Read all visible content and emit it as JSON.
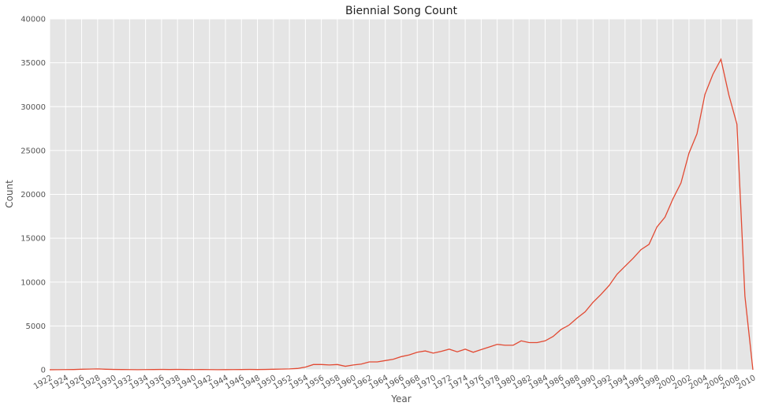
{
  "chart_data": {
    "type": "line",
    "title": "Biennial Song Count",
    "x_label": "Year",
    "y_label": "Count",
    "x": [
      1922,
      1923,
      1924,
      1925,
      1926,
      1927,
      1928,
      1929,
      1930,
      1931,
      1932,
      1933,
      1934,
      1935,
      1936,
      1937,
      1938,
      1939,
      1940,
      1941,
      1942,
      1943,
      1944,
      1945,
      1946,
      1947,
      1948,
      1949,
      1950,
      1951,
      1952,
      1953,
      1954,
      1955,
      1956,
      1957,
      1958,
      1959,
      1960,
      1961,
      1962,
      1963,
      1964,
      1965,
      1966,
      1967,
      1968,
      1969,
      1970,
      1971,
      1972,
      1973,
      1974,
      1975,
      1976,
      1977,
      1978,
      1979,
      1980,
      1981,
      1982,
      1983,
      1984,
      1985,
      1986,
      1987,
      1988,
      1989,
      1990,
      1991,
      1992,
      1993,
      1994,
      1995,
      1996,
      1997,
      1998,
      1999,
      2000,
      2001,
      2002,
      2003,
      2004,
      2005,
      2006,
      2007,
      2008,
      2009,
      2010
    ],
    "series": [
      {
        "name": "Count",
        "color": "#e24a33",
        "values": [
          6,
          10,
          20,
          30,
          60,
          80,
          100,
          60,
          40,
          30,
          20,
          10,
          20,
          30,
          40,
          30,
          40,
          30,
          20,
          30,
          20,
          10,
          15,
          20,
          30,
          40,
          30,
          40,
          60,
          80,
          100,
          150,
          300,
          600,
          600,
          550,
          600,
          400,
          550,
          650,
          900,
          900,
          1050,
          1200,
          1500,
          1700,
          2000,
          2150,
          1900,
          2100,
          2350,
          2050,
          2350,
          2000,
          2300,
          2600,
          2900,
          2800,
          2800,
          3300,
          3100,
          3100,
          3300,
          3800,
          4600,
          5100,
          5900,
          6600,
          7700,
          8600,
          9600,
          10900,
          11800,
          12700,
          13700,
          14300,
          16300,
          17400,
          19500,
          21300,
          24700,
          26900,
          31400,
          33700,
          35400,
          31300,
          28000,
          8400,
          0
        ]
      }
    ],
    "xlim": [
      1922,
      2010
    ],
    "xticks": [
      1922,
      1924,
      1926,
      1928,
      1930,
      1932,
      1934,
      1936,
      1938,
      1940,
      1942,
      1944,
      1946,
      1948,
      1950,
      1952,
      1954,
      1956,
      1958,
      1960,
      1962,
      1964,
      1966,
      1968,
      1970,
      1972,
      1974,
      1976,
      1978,
      1980,
      1982,
      1984,
      1986,
      1988,
      1990,
      1992,
      1994,
      1996,
      1998,
      2000,
      2002,
      2004,
      2006,
      2008,
      2010
    ],
    "ylim": [
      0,
      40000
    ],
    "yticks": [
      0,
      5000,
      10000,
      15000,
      20000,
      25000,
      30000,
      35000,
      40000
    ],
    "grid": true
  }
}
